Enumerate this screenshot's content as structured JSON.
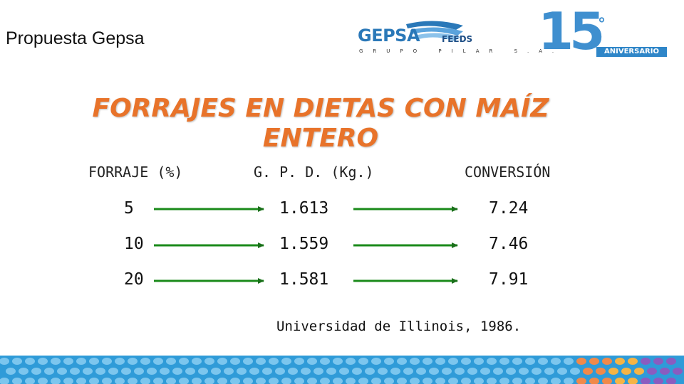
{
  "header": {
    "text": "Propuesta Gepsa"
  },
  "logos": {
    "gepsa": {
      "word": "GEPSA",
      "feeds": "FEEDS",
      "sub": "GRUPO PILAR S.A."
    },
    "anniversary": {
      "number": "15",
      "degree": "°",
      "label": "ANIVERSARIO"
    }
  },
  "title": {
    "line1": "FORRAJES EN DIETAS CON MAÍZ",
    "line2": "ENTERO"
  },
  "table": {
    "headers": [
      "FORRAJE (%)",
      "G. P. D. (Kg.)",
      "CONVERSIÓN"
    ],
    "rows": [
      [
        "5",
        "1.613",
        "7.24"
      ],
      [
        "10",
        "1.559",
        "7.46"
      ],
      [
        "20",
        "1.581",
        "7.91"
      ]
    ]
  },
  "footnote": "Universidad de Illinois, 1986.",
  "colors": {
    "title": "#e8732a",
    "arrow": "#1a8a1a",
    "brand_blue": "#2a78b8"
  }
}
